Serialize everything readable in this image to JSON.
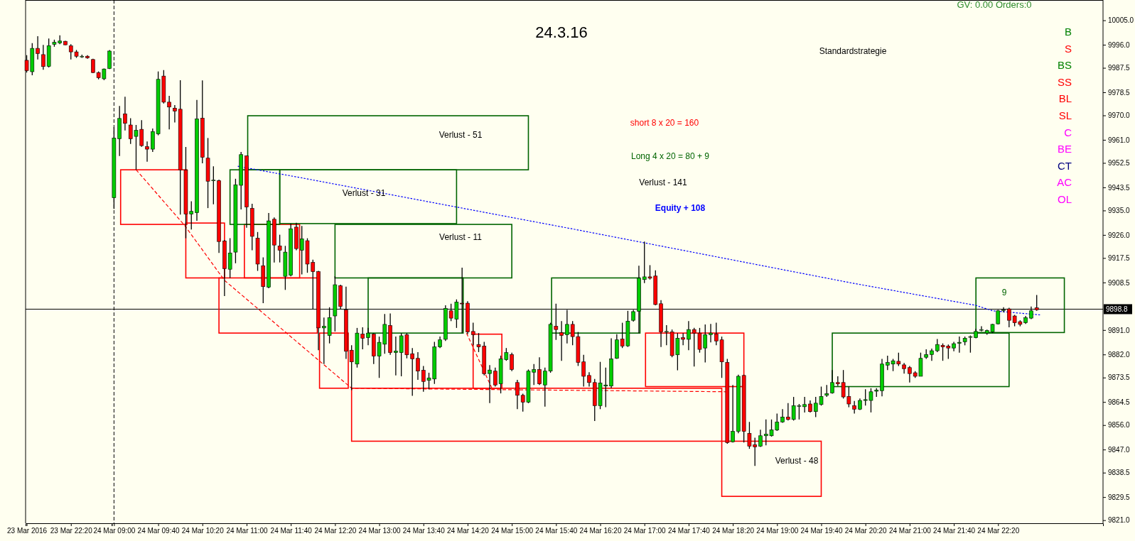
{
  "chart_data": [
    {
      "type": "candlestick",
      "tick_labels": "x",
      "x": [
        "2016-03-23T21:40",
        "2016-03-23T21:45",
        "2016-03-23T21:50",
        "2016-03-23T21:55",
        "2016-03-23T22:00",
        "2016-03-23T22:05",
        "2016-03-23T22:10",
        "2016-03-23T22:15",
        "2016-03-23T22:20",
        "2016-03-23T22:25",
        "2016-03-23T22:30",
        "2016-03-23T22:35",
        "2016-03-23T22:40",
        "2016-03-23T22:45",
        "2016-03-23T22:50",
        "2016-03-23T22:55"
      ],
      "ohlc": [
        [
          9990.4,
          9992.3,
          9985.9,
          9986.6
        ],
        [
          9986.2,
          9996.7,
          9984.9,
          9994.8
        ],
        [
          9994.8,
          9999.3,
          9990.7,
          9992.9
        ],
        [
          9992.5,
          9996.1,
          9986.9,
          9988.1
        ],
        [
          9988.2,
          9998.4,
          9987.8,
          9995.8
        ],
        [
          9996.3,
          9998.0,
          9995.4,
          9997.0
        ],
        [
          9996.8,
          9999.6,
          9996.3,
          9997.5
        ],
        [
          9997.4,
          9997.6,
          9996.0,
          9996.1
        ],
        [
          9995.7,
          9996.3,
          9990.7,
          9993.5
        ],
        [
          9993.5,
          9994.2,
          9991.3,
          9991.9
        ],
        [
          9991.9,
          9992.5,
          9991.3,
          9991.9
        ],
        [
          9991.9,
          9992.3,
          9991.0,
          9991.3
        ],
        [
          9990.7,
          9991.0,
          9985.7,
          9985.9
        ],
        [
          9985.9,
          9986.3,
          9983.4,
          9984.0
        ],
        [
          9983.6,
          9987.4,
          9983.1,
          9987.2
        ],
        [
          9987.4,
          9994.2,
          9987.2,
          9993.8
        ]
      ],
      "xlim": [
        "2016-03-23T21:39",
        "2016-03-23T22:57"
      ],
      "ylim": [
        9820,
        10012.6
      ],
      "xticks": [
        {
          "value": "2016-03-23T21:40",
          "label": "23 Mar 2016"
        },
        {
          "value": "2016-03-23T22:20",
          "label": "23 Mar 22:20"
        }
      ],
      "ref_lines": [
        {
          "axis": "y",
          "value": 9898.8,
          "color": "#000000",
          "line_style": "solid"
        }
      ]
    },
    {
      "type": "candlestick",
      "title": "24.3.16",
      "x": [
        "2016-03-24T09:00",
        "2016-03-24T09:05",
        "2016-03-24T09:10",
        "2016-03-24T09:15",
        "2016-03-24T09:20",
        "2016-03-24T09:25",
        "2016-03-24T09:30",
        "2016-03-24T09:35",
        "2016-03-24T09:40",
        "2016-03-24T09:45",
        "2016-03-24T09:50",
        "2016-03-24T09:55",
        "2016-03-24T10:00",
        "2016-03-24T10:05",
        "2016-03-24T10:10",
        "2016-03-24T10:15",
        "2016-03-24T10:20",
        "2016-03-24T10:25",
        "2016-03-24T10:30",
        "2016-03-24T10:35",
        "2016-03-24T10:40",
        "2016-03-24T10:45",
        "2016-03-24T10:50",
        "2016-03-24T10:55",
        "2016-03-24T11:00",
        "2016-03-24T11:05",
        "2016-03-24T11:10",
        "2016-03-24T11:15",
        "2016-03-24T11:20",
        "2016-03-24T11:25",
        "2016-03-24T11:30",
        "2016-03-24T11:35",
        "2016-03-24T11:40",
        "2016-03-24T11:45",
        "2016-03-24T11:50",
        "2016-03-24T11:55",
        "2016-03-24T12:00",
        "2016-03-24T12:05",
        "2016-03-24T12:10",
        "2016-03-24T12:15",
        "2016-03-24T12:20",
        "2016-03-24T12:25",
        "2016-03-24T12:30",
        "2016-03-24T12:35",
        "2016-03-24T12:40",
        "2016-03-24T12:45",
        "2016-03-24T12:50",
        "2016-03-24T12:55",
        "2016-03-24T13:00",
        "2016-03-24T13:05",
        "2016-03-24T13:10",
        "2016-03-24T13:15",
        "2016-03-24T13:20",
        "2016-03-24T13:25",
        "2016-03-24T13:30",
        "2016-03-24T13:35",
        "2016-03-24T13:40",
        "2016-03-24T13:45",
        "2016-03-24T13:50",
        "2016-03-24T13:55",
        "2016-03-24T14:00",
        "2016-03-24T14:05",
        "2016-03-24T14:10",
        "2016-03-24T14:15",
        "2016-03-24T14:20",
        "2016-03-24T14:25",
        "2016-03-24T14:30",
        "2016-03-24T14:35",
        "2016-03-24T14:40",
        "2016-03-24T14:45",
        "2016-03-24T14:50",
        "2016-03-24T14:55",
        "2016-03-24T15:00",
        "2016-03-24T15:05",
        "2016-03-24T15:10",
        "2016-03-24T15:15",
        "2016-03-24T15:20",
        "2016-03-24T15:25",
        "2016-03-24T15:30",
        "2016-03-24T15:35",
        "2016-03-24T15:40",
        "2016-03-24T15:45",
        "2016-03-24T15:50",
        "2016-03-24T15:55",
        "2016-03-24T16:00",
        "2016-03-24T16:05",
        "2016-03-24T16:10",
        "2016-03-24T16:15",
        "2016-03-24T16:20",
        "2016-03-24T16:25",
        "2016-03-24T16:30",
        "2016-03-24T16:35",
        "2016-03-24T16:40",
        "2016-03-24T16:45",
        "2016-03-24T16:50",
        "2016-03-24T16:55",
        "2016-03-24T17:00",
        "2016-03-24T17:05",
        "2016-03-24T17:10",
        "2016-03-24T17:15",
        "2016-03-24T17:20",
        "2016-03-24T17:25",
        "2016-03-24T17:30",
        "2016-03-24T17:35",
        "2016-03-24T17:40",
        "2016-03-24T17:45",
        "2016-03-24T17:50",
        "2016-03-24T17:55",
        "2016-03-24T18:00",
        "2016-03-24T18:05",
        "2016-03-24T18:10",
        "2016-03-24T18:15",
        "2016-03-24T18:20",
        "2016-03-24T18:25",
        "2016-03-24T18:30",
        "2016-03-24T18:35",
        "2016-03-24T18:40",
        "2016-03-24T18:45",
        "2016-03-24T18:50",
        "2016-03-24T18:55",
        "2016-03-24T19:00",
        "2016-03-24T19:05",
        "2016-03-24T19:10",
        "2016-03-24T19:15",
        "2016-03-24T19:20",
        "2016-03-24T19:25",
        "2016-03-24T19:30",
        "2016-03-24T19:35",
        "2016-03-24T19:40",
        "2016-03-24T19:45",
        "2016-03-24T19:50",
        "2016-03-24T19:55",
        "2016-03-24T20:00",
        "2016-03-24T20:05",
        "2016-03-24T20:10",
        "2016-03-24T20:15",
        "2016-03-24T20:20",
        "2016-03-24T20:25",
        "2016-03-24T20:30",
        "2016-03-24T20:35",
        "2016-03-24T20:40",
        "2016-03-24T20:45",
        "2016-03-24T20:50",
        "2016-03-24T20:55",
        "2016-03-24T21:00",
        "2016-03-24T21:05",
        "2016-03-24T21:10",
        "2016-03-24T21:15",
        "2016-03-24T21:20",
        "2016-03-24T21:25",
        "2016-03-24T21:30",
        "2016-03-24T21:35",
        "2016-03-24T21:40",
        "2016-03-24T21:45",
        "2016-03-24T21:50",
        "2016-03-24T21:55",
        "2016-03-24T22:00",
        "2016-03-24T22:05",
        "2016-03-24T22:10",
        "2016-03-24T22:15",
        "2016-03-24T22:20",
        "2016-03-24T22:25",
        "2016-03-24T22:30",
        "2016-03-24T22:35",
        "2016-03-24T22:40",
        "2016-03-24T22:45",
        "2016-03-24T22:50",
        "2016-03-24T22:55"
      ],
      "ohlc": [
        [
          9939.8,
          9965.8,
          9935.7,
          9961.8
        ],
        [
          9961.5,
          9973.6,
          9955.2,
          9969.0
        ],
        [
          9970.7,
          9977.0,
          9964.6,
          9967.2
        ],
        [
          9966.6,
          9969.1,
          9959.6,
          9961.5
        ],
        [
          9962.4,
          9966.6,
          9950.1,
          9964.6
        ],
        [
          9965.0,
          9968.4,
          9958.6,
          9959.0
        ],
        [
          9958.6,
          9960.5,
          9953.1,
          9957.7
        ],
        [
          9957.7,
          9965.3,
          9956.7,
          9964.2
        ],
        [
          9963.3,
          9986.3,
          9962.8,
          9983.4
        ],
        [
          9984.6,
          9986.8,
          9974.5,
          9975.0
        ],
        [
          9975.0,
          9977.3,
          9965.0,
          9973.2
        ],
        [
          9972.8,
          9973.9,
          9967.5,
          9971.7
        ],
        [
          9972.4,
          9983.1,
          9933.6,
          9950.1
        ],
        [
          9950.0,
          9958.5,
          9924.9,
          9933.8
        ],
        [
          9933.8,
          9938.5,
          9928.1,
          9934.8
        ],
        [
          9934.3,
          9975.8,
          9931.3,
          9968.8
        ],
        [
          9969.1,
          9983.0,
          9952.5,
          9954.7
        ],
        [
          9954.4,
          9961.8,
          9936.0,
          9945.9
        ],
        [
          9946.3,
          9951.4,
          9937.4,
          9946.3
        ],
        [
          9946.1,
          9946.5,
          9919.5,
          9923.7
        ],
        [
          9923.9,
          9924.3,
          9903.6,
          9913.7
        ],
        [
          9913.5,
          9924.9,
          9910.3,
          9919.5
        ],
        [
          9919.8,
          9946.8,
          9915.7,
          9944.6
        ],
        [
          9944.4,
          9956.7,
          9935.5,
          9955.7
        ],
        [
          9955.2,
          9955.4,
          9928.8,
          9936.4
        ],
        [
          9935.9,
          9937.6,
          9920.5,
          9925.6
        ],
        [
          9924.9,
          9927.2,
          9912.9,
          9915.4
        ],
        [
          9914.8,
          9917.9,
          9901.0,
          9907.1
        ],
        [
          9906.9,
          9934.2,
          9906.5,
          9931.3
        ],
        [
          9931.9,
          9932.6,
          9916.0,
          9922.4
        ],
        [
          9922.1,
          9926.2,
          9916.0,
          9920.5
        ],
        [
          9910.9,
          9922.1,
          9905.9,
          9919.8
        ],
        [
          9911.3,
          9930.3,
          9910.9,
          9928.4
        ],
        [
          9929.0,
          9930.6,
          9920.5,
          9921.1
        ],
        [
          9920.5,
          9929.4,
          9911.6,
          9924.7
        ],
        [
          9924.0,
          9924.9,
          9912.2,
          9915.4
        ],
        [
          9916.0,
          9917.0,
          9898.9,
          9912.6
        ],
        [
          9912.6,
          9912.9,
          9883.7,
          9891.9
        ],
        [
          9891.9,
          9895.7,
          9878.6,
          9892.5
        ],
        [
          9889.1,
          9899.5,
          9886.2,
          9895.7
        ],
        [
          9896.3,
          9910.9,
          9890.6,
          9907.8
        ],
        [
          9907.4,
          9907.8,
          9898.9,
          9899.8
        ],
        [
          9898.5,
          9907.1,
          9880.5,
          9883.3
        ],
        [
          9883.7,
          9885.5,
          9869.0,
          9879.4
        ],
        [
          9878.6,
          9891.9,
          9877.3,
          9890.0
        ],
        [
          9889.6,
          9892.1,
          9884.0,
          9888.1
        ],
        [
          9888.3,
          9891.9,
          9885.5,
          9890.0
        ],
        [
          9889.6,
          9890.0,
          9878.6,
          9881.5
        ],
        [
          9881.5,
          9888.7,
          9873.5,
          9886.6
        ],
        [
          9885.9,
          9897.0,
          9882.4,
          9893.2
        ],
        [
          9892.8,
          9897.2,
          9882.0,
          9882.8
        ],
        [
          9882.8,
          9888.7,
          9874.4,
          9883.4
        ],
        [
          9882.8,
          9890.0,
          9874.1,
          9889.0
        ],
        [
          9889.4,
          9890.0,
          9880.7,
          9882.0
        ],
        [
          9882.4,
          9884.5,
          9866.9,
          9880.5
        ],
        [
          9880.7,
          9883.0,
          9872.8,
          9876.0
        ],
        [
          9876.3,
          9877.9,
          9868.4,
          9872.2
        ],
        [
          9872.6,
          9875.4,
          9869.3,
          9873.5
        ],
        [
          9873.1,
          9886.8,
          9871.3,
          9884.9
        ],
        [
          9884.9,
          9888.7,
          9884.5,
          9887.5
        ],
        [
          9887.7,
          9900.2,
          9887.1,
          9899.1
        ],
        [
          9898.2,
          9900.8,
          9894.4,
          9895.5
        ],
        [
          9895.1,
          9902.4,
          9891.9,
          9901.4
        ],
        [
          9901.0,
          9914.1,
          9890.0,
          9900.8
        ],
        [
          9901.0,
          9901.7,
          9889.6,
          9890.4
        ],
        [
          9890.6,
          9893.8,
          9885.5,
          9889.4
        ],
        [
          9885.8,
          9890.0,
          9883.0,
          9884.9
        ],
        [
          9885.2,
          9886.8,
          9874.4,
          9875.0
        ],
        [
          9875.1,
          9878.2,
          9864.2,
          9876.4
        ],
        [
          9876.0,
          9877.3,
          9870.3,
          9870.9
        ],
        [
          9871.3,
          9881.7,
          9867.8,
          9880.5
        ],
        [
          9880.2,
          9884.5,
          9879.8,
          9882.8
        ],
        [
          9882.1,
          9882.8,
          9876.0,
          9876.6
        ],
        [
          9871.8,
          9872.8,
          9862.0,
          9867.1
        ],
        [
          9867.1,
          9867.7,
          9861.1,
          9864.6
        ],
        [
          9864.6,
          9876.6,
          9864.2,
          9876.0
        ],
        [
          9875.6,
          9878.6,
          9870.9,
          9876.6
        ],
        [
          9876.6,
          9881.1,
          9870.9,
          9871.3
        ],
        [
          9870.9,
          9877.3,
          9862.9,
          9876.0
        ],
        [
          9876.0,
          9893.8,
          9875.4,
          9893.2
        ],
        [
          9892.5,
          9900.8,
          9887.5,
          9891.3
        ],
        [
          9890.2,
          9894.4,
          9879.8,
          9889.1
        ],
        [
          9889.4,
          9898.5,
          9886.2,
          9893.2
        ],
        [
          9893.2,
          9894.4,
          9885.5,
          9888.7
        ],
        [
          9888.7,
          9890.4,
          9877.9,
          9879.2
        ],
        [
          9879.4,
          9882.0,
          9870.3,
          9874.1
        ],
        [
          9874.4,
          9875.6,
          9870.3,
          9871.8
        ],
        [
          9871.8,
          9873.1,
          9857.6,
          9863.3
        ],
        [
          9863.3,
          9879.4,
          9862.0,
          9871.6
        ],
        [
          9870.5,
          9877.3,
          9862.7,
          9870.9
        ],
        [
          9870.5,
          9888.1,
          9869.7,
          9880.5
        ],
        [
          9880.7,
          9889.6,
          9880.5,
          9887.5
        ],
        [
          9887.8,
          9893.8,
          9884.5,
          9885.2
        ],
        [
          9885.3,
          9898.2,
          9884.9,
          9894.4
        ],
        [
          9894.7,
          9898.5,
          9894.2,
          9897.9
        ],
        [
          9898.0,
          9914.8,
          9890.0,
          9910.2
        ],
        [
          9909.7,
          9923.7,
          9908.4,
          9910.7
        ],
        [
          9910.7,
          9915.0,
          9909.7,
          9910.2
        ],
        [
          9911.0,
          9913.1,
          9900.2,
          9900.5
        ],
        [
          9900.8,
          9902.1,
          9884.9,
          9890.4
        ],
        [
          9890.6,
          9892.9,
          9885.5,
          9890.6
        ],
        [
          9890.4,
          9891.3,
          9881.1,
          9881.7
        ],
        [
          9882.0,
          9890.0,
          9876.3,
          9888.1
        ],
        [
          9888.3,
          9890.0,
          9885.5,
          9887.7
        ],
        [
          9887.7,
          9894.4,
          9883.7,
          9891.3
        ],
        [
          9891.3,
          9891.9,
          9877.7,
          9890.0
        ],
        [
          9890.0,
          9891.9,
          9882.8,
          9884.0
        ],
        [
          9884.5,
          9893.2,
          9879.2,
          9889.4
        ],
        [
          9889.4,
          9893.4,
          9886.6,
          9890.0
        ],
        [
          9889.7,
          9893.8,
          9885.5,
          9887.1
        ],
        [
          9887.5,
          9888.7,
          9873.5,
          9879.4
        ],
        [
          9879.2,
          9880.5,
          9849.3,
          9849.7
        ],
        [
          9850.0,
          9870.9,
          9849.7,
          9853.8
        ],
        [
          9853.8,
          9874.7,
          9853.1,
          9874.1
        ],
        [
          9874.4,
          9874.7,
          9849.7,
          9853.8
        ],
        [
          9853.1,
          9857.3,
          9847.4,
          9848.4
        ],
        [
          9848.9,
          9851.5,
          9841.1,
          9848.1
        ],
        [
          9848.4,
          9854.4,
          9848.1,
          9852.2
        ],
        [
          9852.2,
          9858.2,
          9848.7,
          9852.8
        ],
        [
          9852.2,
          9858.2,
          9851.9,
          9854.4
        ],
        [
          9854.3,
          9860.4,
          9854.0,
          9857.3
        ],
        [
          9857.3,
          9862.0,
          9857.0,
          9859.1
        ],
        [
          9859.1,
          9864.2,
          9857.8,
          9858.2
        ],
        [
          9858.2,
          9866.5,
          9857.8,
          9863.3
        ],
        [
          9863.3,
          9863.9,
          9858.2,
          9863.3
        ],
        [
          9862.9,
          9866.5,
          9860.8,
          9863.7
        ],
        [
          9863.9,
          9865.2,
          9860.8,
          9861.1
        ],
        [
          9861.1,
          9866.5,
          9859.1,
          9864.2
        ],
        [
          9863.7,
          9870.3,
          9863.3,
          9866.7
        ],
        [
          9867.1,
          9870.9,
          9866.5,
          9867.7
        ],
        [
          9868.0,
          9876.4,
          9867.7,
          9871.8
        ],
        [
          9871.8,
          9874.1,
          9870.5,
          9871.3
        ],
        [
          9871.8,
          9876.4,
          9865.9,
          9866.5
        ],
        [
          9866.7,
          9870.3,
          9862.7,
          9863.9
        ],
        [
          9863.3,
          9865.0,
          9860.4,
          9862.0
        ],
        [
          9862.0,
          9865.9,
          9861.7,
          9865.2
        ],
        [
          9865.2,
          9869.3,
          9863.3,
          9865.5
        ],
        [
          9865.2,
          9869.7,
          9860.8,
          9868.4
        ],
        [
          9868.6,
          9869.7,
          9866.5,
          9869.0
        ],
        [
          9868.8,
          9880.5,
          9866.7,
          9878.6
        ],
        [
          9878.2,
          9881.7,
          9876.4,
          9879.2
        ],
        [
          9878.6,
          9880.5,
          9876.0,
          9879.8
        ],
        [
          9879.6,
          9882.8,
          9877.9,
          9878.6
        ],
        [
          9878.3,
          9879.0,
          9875.1,
          9876.9
        ],
        [
          9877.3,
          9877.9,
          9871.8,
          9875.1
        ],
        [
          9875.4,
          9876.0,
          9873.5,
          9874.1
        ],
        [
          9874.1,
          9882.8,
          9874.1,
          9880.7
        ],
        [
          9881.1,
          9884.0,
          9880.5,
          9882.1
        ],
        [
          9882.1,
          9884.3,
          9879.8,
          9883.5
        ],
        [
          9883.5,
          9887.8,
          9883.0,
          9885.8
        ],
        [
          9885.5,
          9886.2,
          9879.8,
          9884.9
        ],
        [
          9885.2,
          9885.8,
          9880.5,
          9884.5
        ],
        [
          9884.5,
          9886.8,
          9883.3,
          9886.1
        ],
        [
          9886.2,
          9888.7,
          9882.8,
          9886.6
        ],
        [
          9886.8,
          9888.7,
          9885.5,
          9888.1
        ],
        [
          9888.7,
          9889.1,
          9882.8,
          9888.7
        ],
        [
          9888.3,
          9891.6,
          9888.1,
          9890.6
        ],
        [
          9891.3,
          9892.5,
          9890.6,
          9891.3
        ],
        [
          9890.0,
          9891.3,
          9889.4,
          9890.9
        ],
        [
          9890.4,
          9893.4,
          9890.0,
          9893.2
        ],
        [
          9893.4,
          9898.5,
          9893.2,
          9898.2
        ],
        [
          9898.5,
          9899.5,
          9897.6,
          9898.5
        ],
        [
          9898.9,
          9899.3,
          9892.1,
          9894.7
        ],
        [
          9896.3,
          9896.7,
          9892.5,
          9893.8
        ],
        [
          9894.2,
          9894.7,
          9892.5,
          9893.2
        ],
        [
          9893.8,
          9896.3,
          9893.4,
          9895.7
        ],
        [
          9895.5,
          9899.8,
          9895.1,
          9898.2
        ],
        [
          9899.3,
          9904.0,
          9898.2,
          9898.6
        ]
      ],
      "xlim": [
        "2016-03-24T08:58",
        "2016-03-24T23:55"
      ],
      "ylim": [
        9820,
        10012.6
      ],
      "xticks": [
        {
          "value": "2016-03-24T09:00",
          "label": "24 Mar 09:00"
        },
        {
          "value": "2016-03-24T09:40",
          "label": "24 Mar 09:40"
        },
        {
          "value": "2016-03-24T10:20",
          "label": "24 Mar 10:20"
        },
        {
          "value": "2016-03-24T11:00",
          "label": "24 Mar 11:00"
        },
        {
          "value": "2016-03-24T11:40",
          "label": "24 Mar 11:40"
        },
        {
          "value": "2016-03-24T12:20",
          "label": "24 Mar 12:20"
        },
        {
          "value": "2016-03-24T13:00",
          "label": "24 Mar 13:00"
        },
        {
          "value": "2016-03-24T13:40",
          "label": "24 Mar 13:40"
        },
        {
          "value": "2016-03-24T14:20",
          "label": "24 Mar 14:20"
        },
        {
          "value": "2016-03-24T15:00",
          "label": "24 Mar 15:00"
        },
        {
          "value": "2016-03-24T15:40",
          "label": "24 Mar 15:40"
        },
        {
          "value": "2016-03-24T16:20",
          "label": "24 Mar 16:20"
        },
        {
          "value": "2016-03-24T17:00",
          "label": "24 Mar 17:00"
        },
        {
          "value": "2016-03-24T17:40",
          "label": "24 Mar 17:40"
        },
        {
          "value": "2016-03-24T18:20",
          "label": "24 Mar 18:20"
        },
        {
          "value": "2016-03-24T19:00",
          "label": "24 Mar 19:00"
        },
        {
          "value": "2016-03-24T19:40",
          "label": "24 Mar 19:40"
        },
        {
          "value": "2016-03-24T20:20",
          "label": "24 Mar 20:20"
        },
        {
          "value": "2016-03-24T21:00",
          "label": "24 Mar 21:00"
        },
        {
          "value": "2016-03-24T21:40",
          "label": "24 Mar 21:40"
        },
        {
          "value": "2016-03-24T22:20",
          "label": "24 Mar 22:20"
        }
      ],
      "yticks": [
        {
          "value": 10005,
          "label": "10005.0"
        },
        {
          "value": 9996,
          "label": "9996.0"
        },
        {
          "value": 9987.5,
          "label": "9987.5"
        },
        {
          "value": 9978.5,
          "label": "9978.5"
        },
        {
          "value": 9970,
          "label": "9970.0"
        },
        {
          "value": 9961,
          "label": "9961.0"
        },
        {
          "value": 9952.5,
          "label": "9952.5"
        },
        {
          "value": 9943.5,
          "label": "9943.5"
        },
        {
          "value": 9935,
          "label": "9935.0"
        },
        {
          "value": 9926,
          "label": "9926.0"
        },
        {
          "value": 9917.5,
          "label": "9917.5"
        },
        {
          "value": 9908.5,
          "label": "9908.5"
        },
        {
          "value": 9891,
          "label": "9891.0"
        },
        {
          "value": 9882,
          "label": "9882.0"
        },
        {
          "value": 9873.5,
          "label": "9873.5"
        },
        {
          "value": 9864.5,
          "label": "9864.5"
        },
        {
          "value": 9856,
          "label": "9856.0"
        },
        {
          "value": 9847,
          "label": "9847.0"
        },
        {
          "value": 9838.5,
          "label": "9838.5"
        },
        {
          "value": 9829.5,
          "label": "9829.5"
        },
        {
          "value": 9821,
          "label": "9821.0"
        }
      ],
      "series": [
        {
          "type": "line",
          "color": "#ff0000",
          "line_style": "dashed",
          "x": [
            "2016-03-24T09:20",
            "2016-03-24T10:04",
            "2016-03-24T10:40",
            "2016-03-24T12:35",
            "2016-03-24T18:15"
          ],
          "values": [
            9950.1,
            9929.6,
            9909.4,
            9869.7,
            9868.4
          ]
        },
        {
          "type": "line",
          "color": "#ff0000",
          "line_style": "dashed",
          "x": [
            "2016-03-24T14:19",
            "2016-03-24T14:42"
          ],
          "values": [
            9890.0,
            9869.7
          ]
        },
        {
          "type": "line",
          "color": "#0000ff",
          "line_style": "dotted",
          "x": [
            "2016-03-24T10:52",
            "2016-03-24T11:49",
            "2016-03-24T15:58",
            "2016-03-24T20:08",
            "2016-03-24T22:00",
            "2016-03-24T22:15",
            "2016-03-24T22:58"
          ],
          "values": [
            9951.4,
            9947.2,
            9928.1,
            9908.4,
            9900.2,
            9898.2,
            9896.7
          ]
        }
      ],
      "ref_lines": [
        {
          "axis": "y",
          "value": 9898.8,
          "label": "9898.8",
          "color": "#000000",
          "line_style": "solid"
        },
        {
          "axis": "x",
          "value": "2016-03-24T09:00",
          "color": "#000000",
          "line_style": "dashed"
        }
      ],
      "annotations": [
        "GV: 0.00 Orders:0",
        "Standardstrategie",
        "short 8 x 20 = 160",
        "Long 4 x 20 = 80 + 9",
        "Verlust - 141",
        "Equity + 108",
        "B",
        "S",
        "BS",
        "SS",
        "BL",
        "SL",
        "C",
        "BE",
        "CT",
        "AC",
        "OL",
        "Verlust - 51",
        "Verlust - 31",
        "Verlust - 11",
        "Verlust - 48",
        "9"
      ]
    }
  ]
}
